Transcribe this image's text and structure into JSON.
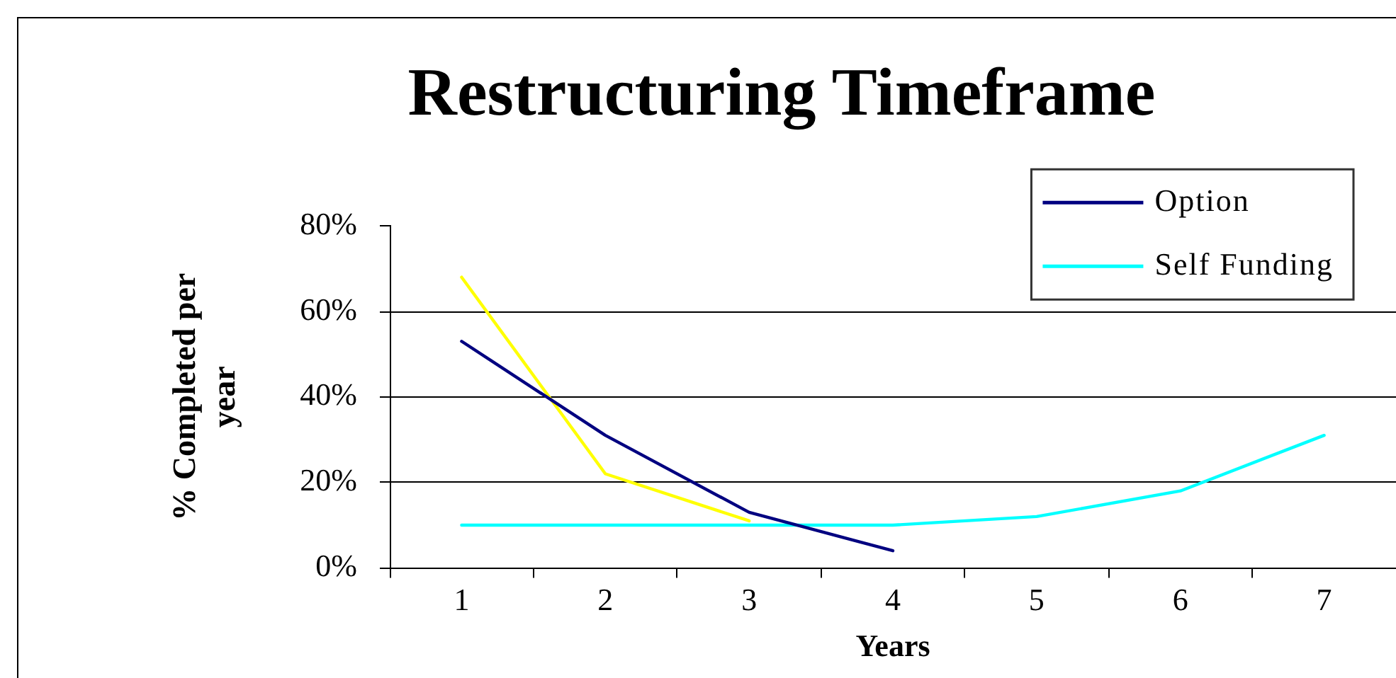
{
  "chart_data": {
    "type": "line",
    "title": "Restructuring Timeframe",
    "xlabel": "Years",
    "ylabel": "% Completed per year",
    "categories": [
      "1",
      "2",
      "3",
      "4",
      "5",
      "6",
      "7"
    ],
    "series": [
      {
        "name": "Option",
        "color": "#000080",
        "values": [
          53,
          31,
          13,
          4,
          null,
          null,
          null
        ]
      },
      {
        "name": "Self Funding",
        "color": "#00ffff",
        "values": [
          10,
          10,
          10,
          10,
          12,
          18,
          31
        ]
      },
      {
        "color": "#ffff00",
        "values": [
          68,
          22,
          11,
          null,
          null,
          null,
          null
        ]
      }
    ],
    "ylim": [
      0,
      80
    ],
    "yticks": [
      {
        "value": 0,
        "label": "0%"
      },
      {
        "value": 20,
        "label": "20%"
      },
      {
        "value": 40,
        "label": "40%"
      },
      {
        "value": 60,
        "label": "60%"
      },
      {
        "value": 80,
        "label": "80%"
      }
    ],
    "grid": "y",
    "legend": "top right",
    "marker": "none",
    "line_style": "solid"
  }
}
